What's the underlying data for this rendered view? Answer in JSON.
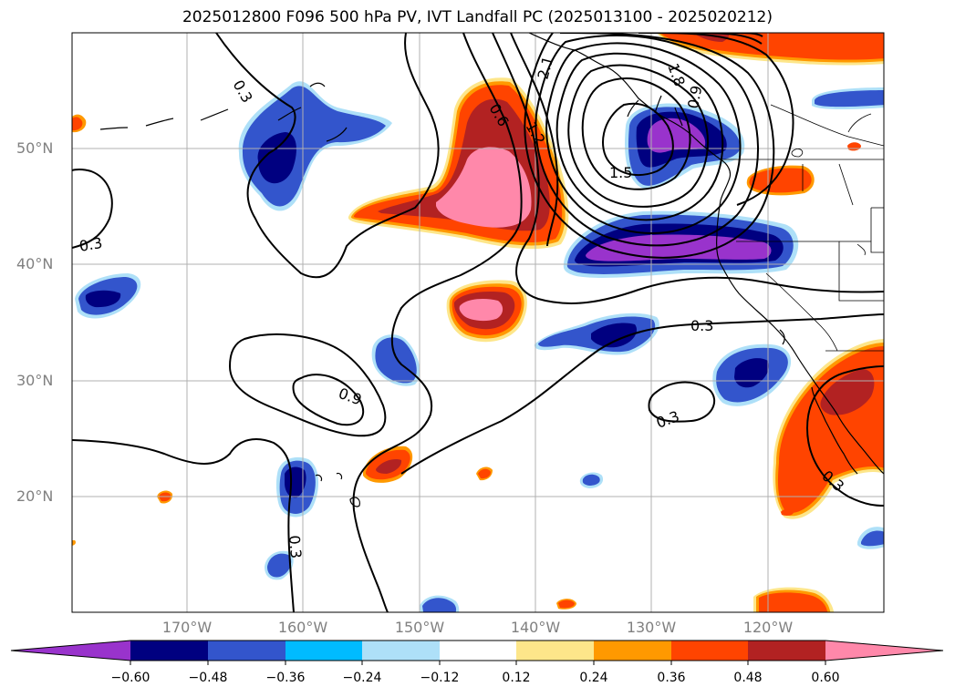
{
  "title": "2025012800 F096 500 hPa PV, IVT Landfall PC (2025013100 - 2025020212)",
  "latitude_labels": [
    "50°N",
    "40°N",
    "30°N",
    "20°N"
  ],
  "longitude_labels": [
    "170°W",
    "160°W",
    "150°W",
    "140°W",
    "130°W",
    "120°W"
  ],
  "contour_labels": [
    "0.3",
    "0.3",
    "0.6",
    "1.2",
    "2.1",
    "1.8",
    "0.9",
    "1.5",
    "0.3",
    "0.9",
    "0.3",
    "0.3",
    "0.3"
  ],
  "colorbar": {
    "ticks": [
      "−0.60",
      "−0.48",
      "−0.36",
      "−0.24",
      "−0.12",
      "0.12",
      "0.24",
      "0.36",
      "0.48",
      "0.60"
    ],
    "colors": [
      "#9933cc",
      "#000080",
      "#3355cc",
      "#00bbff",
      "#aee0f8",
      "#ffffff",
      "#fde68a",
      "#ff9900",
      "#ff4400",
      "#b22222",
      "#ff88aa"
    ]
  },
  "colors": {
    "purple": "#9933cc",
    "navy": "#000080",
    "blue": "#3355cc",
    "cyan": "#00bbff",
    "light_blue": "#aee0f8",
    "yellow": "#fde68a",
    "orange": "#ff9900",
    "red_orange": "#ff4400",
    "dark_red": "#b22222",
    "pink": "#ff88aa",
    "grid": "#b0b0b0",
    "axis_label": "#808080"
  }
}
